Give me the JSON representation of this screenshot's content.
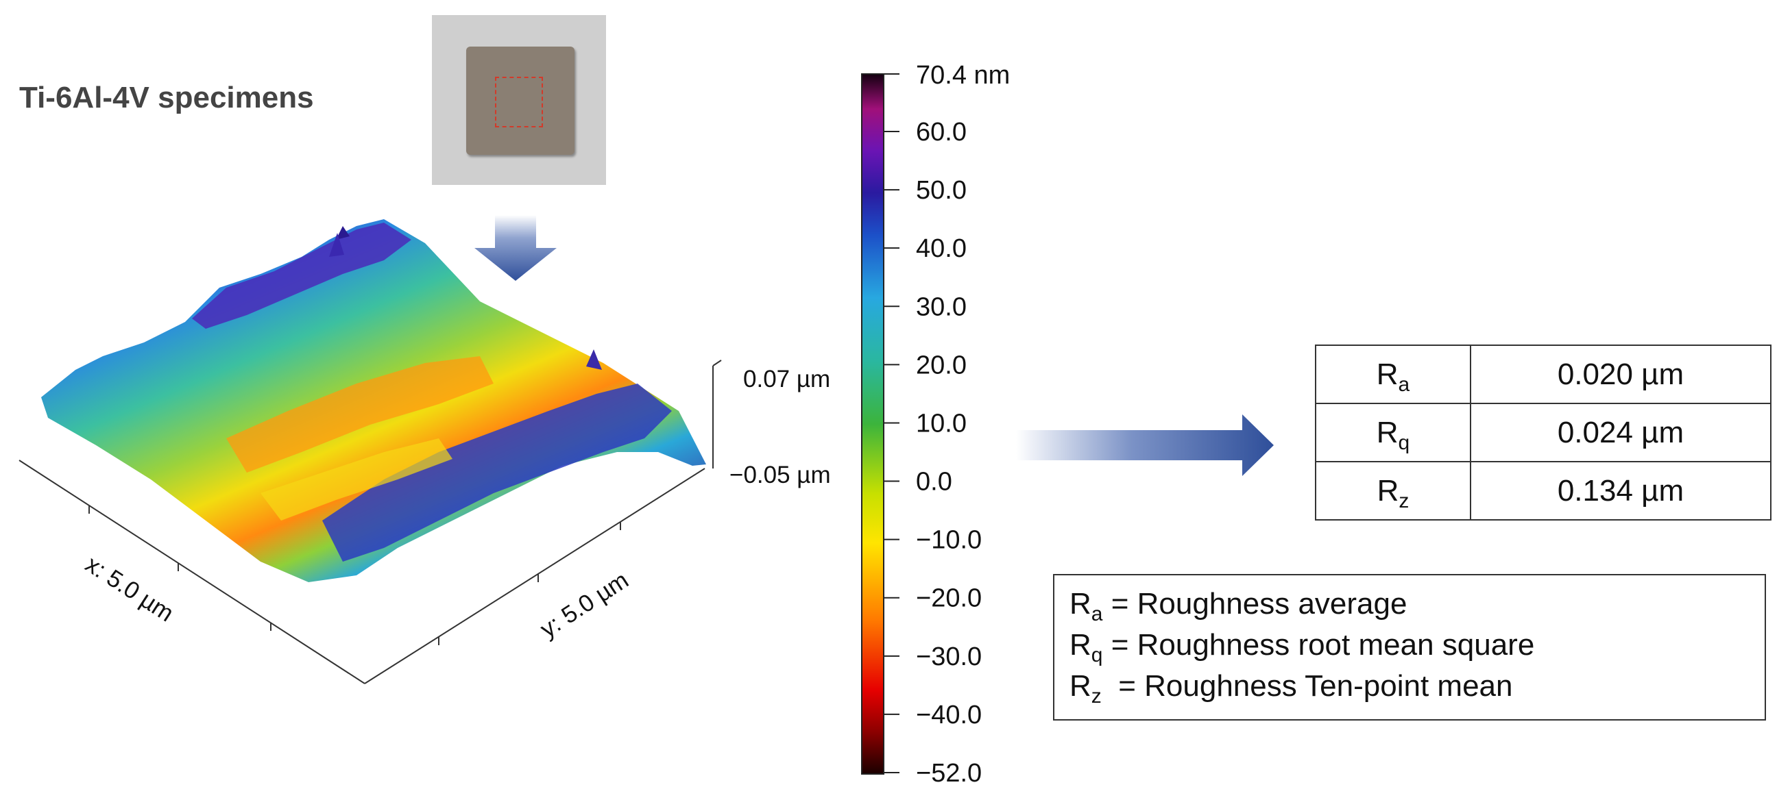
{
  "specimen_title": "Ti-6Al-4V specimens",
  "photo_icon": "specimen-photo",
  "colors": {
    "arrow": "#2f4f9a",
    "roi_outline": "#d23a2a"
  },
  "surface_axes": {
    "x_label": "x: 5.0 µm",
    "y_label": "y: 5.0 µm",
    "z_max": "0.07  µm",
    "z_min": "−0.05  µm"
  },
  "colorbar": {
    "top_label": "70.4 nm",
    "ticks": [
      "60.0",
      "50.0",
      "40.0",
      "30.0",
      "20.0",
      "10.0",
      "0.0",
      "−10.0",
      "−20.0",
      "−30.0",
      "−40.0",
      "−52.0"
    ]
  },
  "roughness_table": {
    "rows": [
      {
        "symbol": "R",
        "sub": "a",
        "value": "0.020 µm"
      },
      {
        "symbol": "R",
        "sub": "q",
        "value": "0.024 µm"
      },
      {
        "symbol": "R",
        "sub": "z",
        "value": "0.134 µm"
      }
    ]
  },
  "legend": [
    {
      "symbol": "R",
      "sub": "a",
      "text": " = Roughness average"
    },
    {
      "symbol": "R",
      "sub": "q",
      "text": " = Roughness root mean square"
    },
    {
      "symbol": "R",
      "sub": "z",
      "text": "  = Roughness Ten-point mean"
    }
  ]
}
